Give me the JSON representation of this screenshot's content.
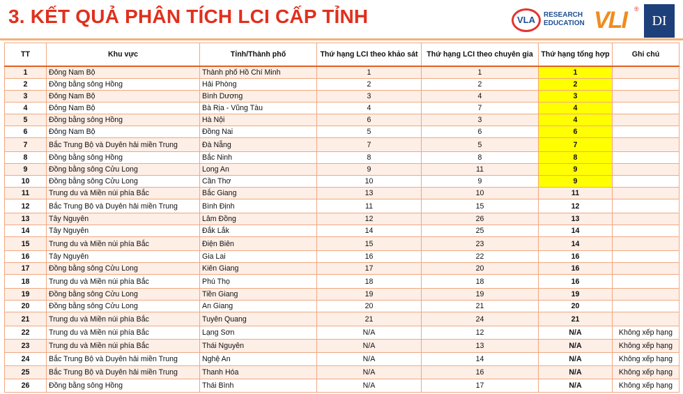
{
  "header": {
    "title": "3. KẾT QUẢ PHÂN TÍCH LCI CẤP TỈNH",
    "logo_vla": "VLA",
    "logo_research": "RESEARCH",
    "logo_education": "EDUCATION",
    "logo_vli": "VLI",
    "logo_di": "DI",
    "highlight_color": "#ffff00",
    "accent_color": "#e0301e"
  },
  "table": {
    "columns": [
      "TT",
      "Khu vực",
      "Tỉnh/Thành phố",
      "Thứ hạng LCI theo khảo sát",
      "Thứ hạng LCI theo chuyên gia",
      "Thứ hạng tổng hợp",
      "Ghi chú"
    ],
    "rows": [
      {
        "tt": "1",
        "region": "Đông Nam Bộ",
        "province": "Thành phố Hồ Chí Minh",
        "survey": "1",
        "expert": "1",
        "overall": "1",
        "note": ""
      },
      {
        "tt": "2",
        "region": "Đồng bằng sông Hồng",
        "province": "Hải Phòng",
        "survey": "2",
        "expert": "2",
        "overall": "2",
        "note": ""
      },
      {
        "tt": "3",
        "region": "Đông Nam Bộ",
        "province": "Bình Dương",
        "survey": "3",
        "expert": "4",
        "overall": "3",
        "note": ""
      },
      {
        "tt": "4",
        "region": "Đông Nam Bộ",
        "province": "Bà Rịa - Vũng Tàu",
        "survey": "4",
        "expert": "7",
        "overall": "4",
        "note": ""
      },
      {
        "tt": "5",
        "region": "Đồng bằng sông Hồng",
        "province": "Hà Nội",
        "survey": "6",
        "expert": "3",
        "overall": "4",
        "note": ""
      },
      {
        "tt": "6",
        "region": "Đông Nam Bộ",
        "province": "Đồng Nai",
        "survey": "5",
        "expert": "6",
        "overall": "6",
        "note": ""
      },
      {
        "tt": "7",
        "region": "Bắc Trung Bộ và Duyên hải miền Trung",
        "province": "Đà Nẵng",
        "survey": "7",
        "expert": "5",
        "overall": "7",
        "note": ""
      },
      {
        "tt": "8",
        "region": "Đồng bằng sông Hồng",
        "province": "Bắc Ninh",
        "survey": "8",
        "expert": "8",
        "overall": "8",
        "note": ""
      },
      {
        "tt": "9",
        "region": "Đồng bằng sông Cửu Long",
        "province": "Long An",
        "survey": "9",
        "expert": "11",
        "overall": "9",
        "note": ""
      },
      {
        "tt": "10",
        "region": "Đồng bằng sông Cửu Long",
        "province": "Cần Thơ",
        "survey": "10",
        "expert": "9",
        "overall": "9",
        "note": ""
      },
      {
        "tt": "11",
        "region": "Trung du và Miền núi phía Bắc",
        "province": "Bắc Giang",
        "survey": "13",
        "expert": "10",
        "overall": "11",
        "note": ""
      },
      {
        "tt": "12",
        "region": "Bắc Trung Bộ và Duyên hải miền Trung",
        "province": "Bình Định",
        "survey": "11",
        "expert": "15",
        "overall": "12",
        "note": ""
      },
      {
        "tt": "13",
        "region": "Tây Nguyên",
        "province": "Lâm Đồng",
        "survey": "12",
        "expert": "26",
        "overall": "13",
        "note": ""
      },
      {
        "tt": "14",
        "region": "Tây Nguyên",
        "province": "Đắk Lắk",
        "survey": "14",
        "expert": "25",
        "overall": "14",
        "note": ""
      },
      {
        "tt": "15",
        "region": "Trung du và Miền núi phía Bắc",
        "province": "Điện Biên",
        "survey": "15",
        "expert": "23",
        "overall": "14",
        "note": ""
      },
      {
        "tt": "16",
        "region": "Tây Nguyên",
        "province": "Gia Lai",
        "survey": "16",
        "expert": "22",
        "overall": "16",
        "note": ""
      },
      {
        "tt": "17",
        "region": "Đồng bằng sông Cửu Long",
        "province": "Kiên Giang",
        "survey": "17",
        "expert": "20",
        "overall": "16",
        "note": ""
      },
      {
        "tt": "18",
        "region": "Trung du và Miền núi phía Bắc",
        "province": "Phú Thọ",
        "survey": "18",
        "expert": "18",
        "overall": "16",
        "note": ""
      },
      {
        "tt": "19",
        "region": "Đồng bằng sông Cửu Long",
        "province": "Tiền Giang",
        "survey": "19",
        "expert": "19",
        "overall": "19",
        "note": ""
      },
      {
        "tt": "20",
        "region": "Đồng bằng sông Cửu Long",
        "province": "An Giang",
        "survey": "20",
        "expert": "21",
        "overall": "20",
        "note": ""
      },
      {
        "tt": "21",
        "region": "Trung du và Miền núi phía Bắc",
        "province": "Tuyên Quang",
        "survey": "21",
        "expert": "24",
        "overall": "21",
        "note": ""
      },
      {
        "tt": "22",
        "region": "Trung du và Miền núi phía Bắc",
        "province": "Lạng Sơn",
        "survey": "N/A",
        "expert": "12",
        "overall": "N/A",
        "note": "Không xếp hạng"
      },
      {
        "tt": "23",
        "region": "Trung du và Miền núi phía Bắc",
        "province": "Thái Nguyên",
        "survey": "N/A",
        "expert": "13",
        "overall": "N/A",
        "note": "Không xếp hạng"
      },
      {
        "tt": "24",
        "region": "Bắc Trung Bộ và Duyên hải miền Trung",
        "province": "Nghệ An",
        "survey": "N/A",
        "expert": "14",
        "overall": "N/A",
        "note": "Không xếp hạng"
      },
      {
        "tt": "25",
        "region": "Bắc Trung Bộ và Duyên hải miền Trung",
        "province": "Thanh Hóa",
        "survey": "N/A",
        "expert": "16",
        "overall": "N/A",
        "note": "Không xếp hạng"
      },
      {
        "tt": "26",
        "region": "Đồng bằng sông Hồng",
        "province": "Thái Bình",
        "survey": "N/A",
        "expert": "17",
        "overall": "N/A",
        "note": "Không xếp hạng"
      }
    ]
  }
}
